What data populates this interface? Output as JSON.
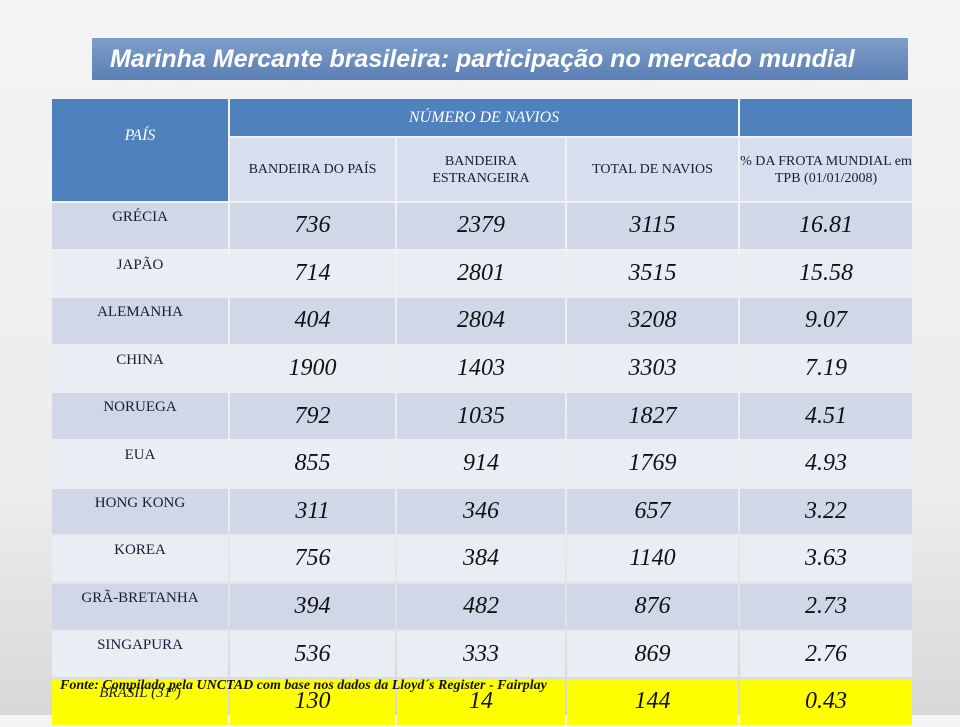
{
  "header": {
    "title": "Marinha Mercante brasileira: participação no mercado mundial"
  },
  "table": {
    "country_header": "PAÍS",
    "group_header": "NÚMERO DE NAVIOS",
    "columns": [
      "BANDEIRA DO PAÍS",
      "BANDEIRA ESTRANGEIRA",
      "TOTAL DE NAVIOS",
      "% DA FROTA MUNDIAL em TPB (01/01/2008)"
    ],
    "rows": [
      [
        "GRÉCIA",
        736,
        2379,
        3115,
        16.81
      ],
      [
        "JAPÃO",
        714,
        2801,
        3515,
        15.58
      ],
      [
        "ALEMANHA",
        404,
        2804,
        3208,
        9.07
      ],
      [
        "CHINA",
        1900,
        1403,
        3303,
        7.19
      ],
      [
        "NORUEGA",
        792,
        1035,
        1827,
        4.51
      ],
      [
        "EUA",
        855,
        914,
        1769,
        4.93
      ],
      [
        "HONG KONG",
        311,
        346,
        657,
        3.22
      ],
      [
        "KOREA",
        756,
        384,
        1140,
        3.63
      ],
      [
        "GRÃ-BRETANHA",
        394,
        482,
        876,
        2.73
      ],
      [
        "SINGAPURA",
        536,
        333,
        869,
        2.76
      ],
      [
        "BRASIL (31º)",
        130,
        14,
        144,
        0.43
      ]
    ]
  },
  "footer": {
    "source": "Fonte: Compilado pela UNCTAD com base nos dados da Lloyd´s Register - Fairplay"
  }
}
